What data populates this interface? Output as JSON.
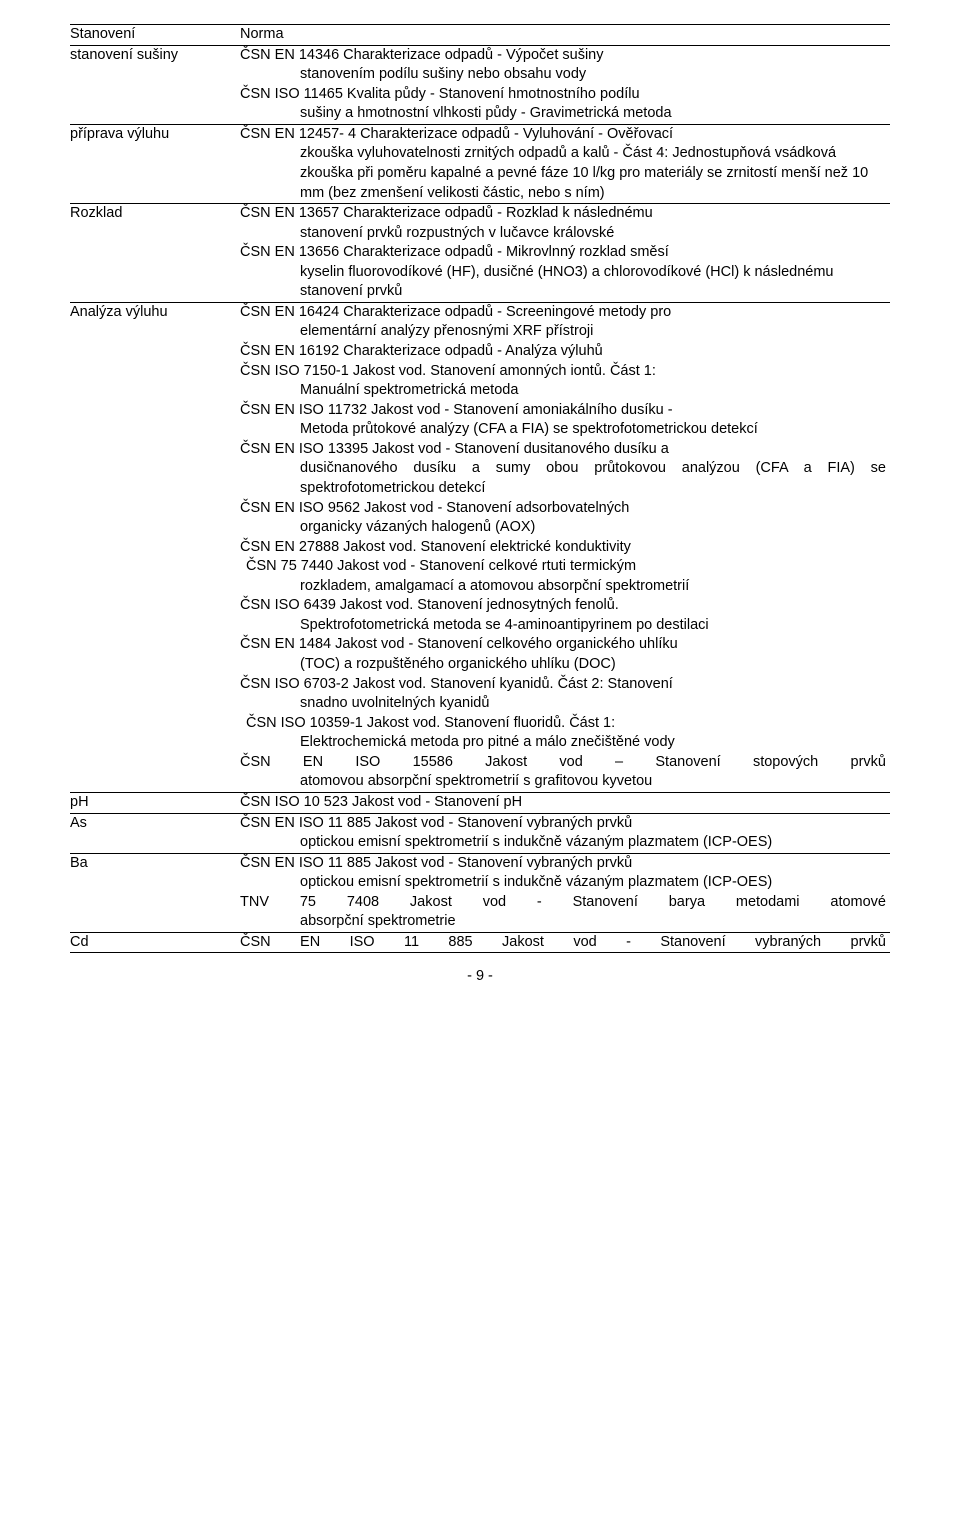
{
  "header": {
    "col1": "Stanovení",
    "col2": "Norma"
  },
  "rows": [
    {
      "label": "stanovení sušiny",
      "norms": [
        {
          "first": "ČSN EN 14346 Charakterizace odpadů - Výpočet sušiny",
          "rest": [
            "stanovením podílu sušiny nebo obsahu vody"
          ]
        },
        {
          "first": "ČSN ISO 11465 Kvalita půdy - Stanovení hmotnostního podílu",
          "rest": [
            "sušiny a hmotnostní vlhkosti půdy - Gravimetrická metoda"
          ]
        }
      ]
    },
    {
      "label": "příprava výluhu",
      "norms": [
        {
          "first": "ČSN EN 12457- 4 Charakterizace odpadů - Vyluhování - Ověřovací",
          "rest": [
            "zkouška vyluhovatelnosti zrnitých odpadů a kalů - Část 4: Jednostupňová vsádková zkouška při poměru kapalné a pevné fáze 10 l/kg pro materiály se zrnitostí menší než 10 mm (bez zmenšení velikosti částic, nebo s ním)"
          ]
        }
      ]
    },
    {
      "label": "Rozklad",
      "norms": [
        {
          "first": "ČSN EN 13657 Charakterizace odpadů - Rozklad k následnému",
          "rest": [
            "stanovení prvků rozpustných v lučavce královské"
          ]
        },
        {
          "first": "ČSN EN 13656 Charakterizace odpadů - Mikrovlnný rozklad směsí",
          "rest": [
            "kyselin fluorovodíkové (HF), dusičné (HNO3) a chlorovodíkové (HCl) k následnému stanovení prvků"
          ]
        }
      ]
    },
    {
      "label": "Analýza výluhu",
      "norms": [
        {
          "first": "ČSN EN 16424 Charakterizace odpadů - Screeningové metody pro",
          "rest": [
            "elementární analýzy přenosnými XRF přístroji"
          ]
        },
        {
          "first": "ČSN EN 16192 Charakterizace odpadů - Analýza výluhů",
          "rest": []
        },
        {
          "first": "ČSN ISO 7150-1 Jakost vod. Stanovení amonných iontů. Část 1:",
          "rest": [
            "Manuální spektrometrická metoda"
          ]
        },
        {
          "first": "ČSN EN ISO 11732 Jakost vod - Stanovení amoniakálního dusíku -",
          "rest": [
            "Metoda průtokové analýzy (CFA a FIA) se spektrofotometrickou detekcí"
          ]
        },
        {
          "first": "ČSN EN ISO 13395 Jakost vod - Stanovení dusitanového dusíku a",
          "rest": [
            "dusičnanového dusíku a sumy obou průtokovou analýzou (CFA a FIA) se spektrofotometrickou detekcí"
          ],
          "justify": true
        },
        {
          "first": "ČSN EN ISO 9562 Jakost vod - Stanovení adsorbovatelných",
          "rest": [
            "organicky vázaných halogenů (AOX)"
          ]
        },
        {
          "first": "ČSN EN 27888 Jakost vod. Stanovení elektrické konduktivity",
          "rest": []
        },
        {
          "first": "ČSN 75 7440 Jakost vod - Stanovení celkové rtuti termickým",
          "rest": [
            "rozkladem, amalgamací a atomovou absorpční spektrometrií"
          ],
          "leadpad": true
        },
        {
          "first": "ČSN ISO 6439 Jakost vod. Stanovení jednosytných fenolů.",
          "rest": [
            "Spektrofotometrická metoda se 4-aminoantipyrinem po destilaci"
          ]
        },
        {
          "first": "ČSN EN 1484 Jakost vod - Stanovení celkového organického uhlíku",
          "rest": [
            "(TOC) a rozpuštěného organického uhlíku (DOC)"
          ]
        },
        {
          "first": "ČSN ISO 6703-2 Jakost vod. Stanovení kyanidů. Část 2: Stanovení",
          "rest": [
            "snadno uvolnitelných kyanidů"
          ]
        },
        {
          "first": "ČSN ISO 10359-1 Jakost vod. Stanovení fluoridů. Část 1:",
          "rest": [
            "Elektrochemická metoda pro pitné a málo znečištěné vody"
          ],
          "leadpad": true
        },
        {
          "first": "ČSN EN ISO 15586 Jakost vod – Stanovení stopových prvků",
          "rest": [
            "atomovou absorpční spektrometrií s grafitovou kyvetou"
          ],
          "justifyFirst": true
        }
      ]
    },
    {
      "label": "pH",
      "norms": [
        {
          "first": "ČSN ISO 10 523 Jakost vod - Stanovení pH",
          "rest": []
        }
      ]
    },
    {
      "label": "As",
      "norms": [
        {
          "first": "ČSN EN ISO 11 885 Jakost vod - Stanovení vybraných prvků",
          "rest": [
            "optickou emisní spektrometrií s indukčně vázaným plazmatem (ICP-OES)"
          ]
        }
      ]
    },
    {
      "label": "Ba",
      "norms": [
        {
          "first": "ČSN EN ISO 11 885 Jakost vod - Stanovení vybraných prvků",
          "rest": [
            "optickou emisní spektrometrií s indukčně vázaným plazmatem (ICP-OES)"
          ]
        },
        {
          "first": "TNV 75 7408 Jakost vod - Stanovení barya metodami atomové",
          "rest": [
            "absorpční spektrometrie"
          ],
          "justifyFirst": true
        }
      ]
    },
    {
      "label": "Cd",
      "norms": [
        {
          "first": "ČSN EN ISO 11 885 Jakost vod - Stanovení vybraných prvků",
          "rest": [],
          "justifyFirst": true
        }
      ]
    }
  ],
  "pageNumber": "- 9 -"
}
